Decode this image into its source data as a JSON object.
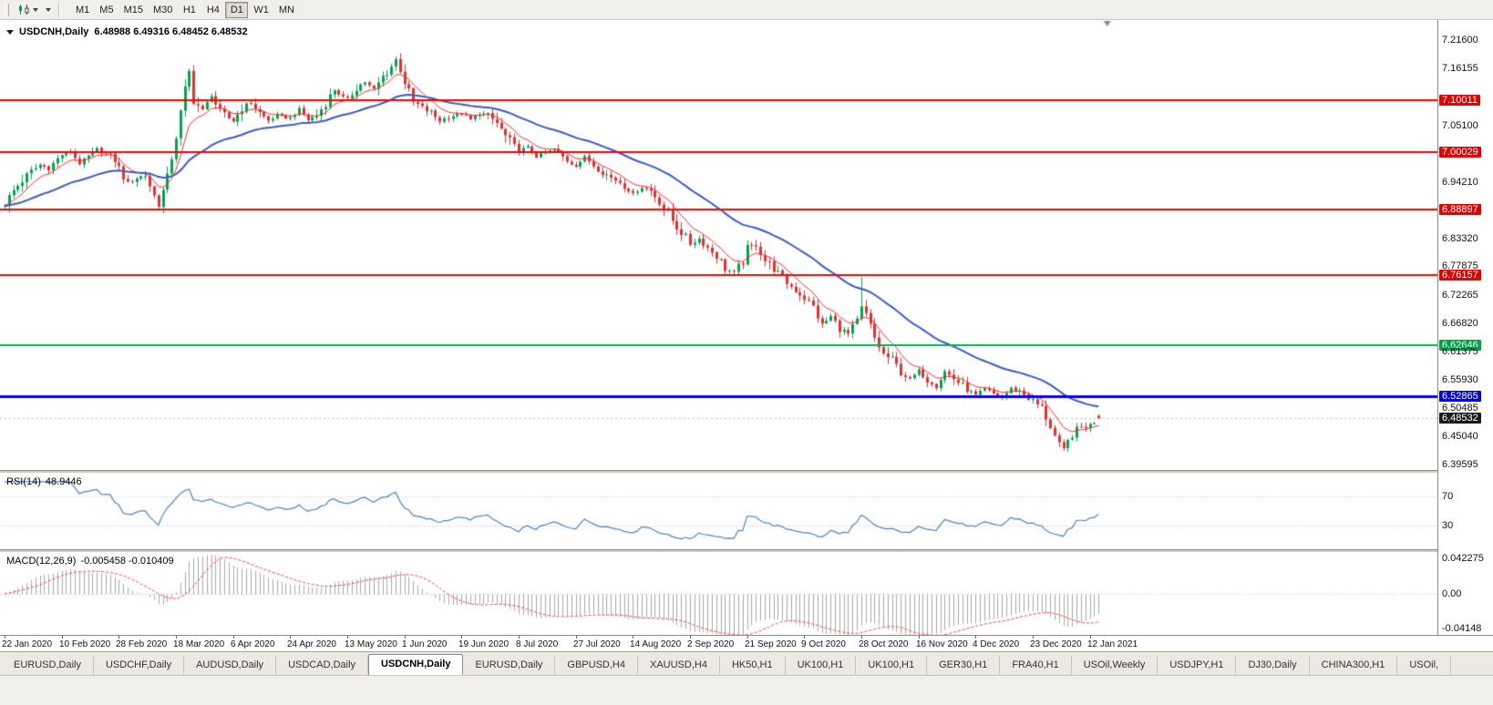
{
  "toolbar": {
    "timeframes": [
      {
        "label": "M1",
        "active": false
      },
      {
        "label": "M5",
        "active": false
      },
      {
        "label": "M15",
        "active": false
      },
      {
        "label": "M30",
        "active": false
      },
      {
        "label": "H1",
        "active": false
      },
      {
        "label": "H4",
        "active": false
      },
      {
        "label": "D1",
        "active": true
      },
      {
        "label": "W1",
        "active": false
      },
      {
        "label": "MN",
        "active": false
      }
    ]
  },
  "chart": {
    "title": "USDCNH,Daily",
    "ohlc_text": "6.48988 6.49316 6.48452 6.48532"
  },
  "rsi_panel": {
    "label": "RSI(14)",
    "value": "48.9446",
    "axis": [
      {
        "text": "70",
        "value": 70
      },
      {
        "text": "30",
        "value": 30
      }
    ]
  },
  "macd_panel": {
    "label": "MACD(12,26,9)",
    "value": "-0.005458 -0.010409",
    "axis": [
      {
        "text": "0.042275",
        "value": 0.042275
      },
      {
        "text": "0.00",
        "value": 0
      },
      {
        "text": "-0.04148",
        "value": -0.04148
      }
    ]
  },
  "price_axis": {
    "ticks": [
      {
        "label": "7.21600",
        "price": 7.216,
        "style": "plain"
      },
      {
        "label": "7.16155",
        "price": 7.16155,
        "style": "plain"
      },
      {
        "label": "7.10011",
        "price": 7.10011,
        "style": "red"
      },
      {
        "label": "7.05100",
        "price": 7.051,
        "style": "plain"
      },
      {
        "label": "7.00029",
        "price": 7.00029,
        "style": "red"
      },
      {
        "label": "6.94210",
        "price": 6.9421,
        "style": "plain"
      },
      {
        "label": "6.88897",
        "price": 6.88897,
        "style": "red"
      },
      {
        "label": "6.83320",
        "price": 6.8332,
        "style": "plain"
      },
      {
        "label": "6.77875",
        "price": 6.77875,
        "style": "plain"
      },
      {
        "label": "6.76157",
        "price": 6.76157,
        "style": "red"
      },
      {
        "label": "6.72265",
        "price": 6.72265,
        "style": "plain"
      },
      {
        "label": "6.66820",
        "price": 6.6682,
        "style": "plain"
      },
      {
        "label": "6.62646",
        "price": 6.62646,
        "style": "green"
      },
      {
        "label": "6.61375",
        "price": 6.61375,
        "style": "plain"
      },
      {
        "label": "6.55930",
        "price": 6.5593,
        "style": "plain"
      },
      {
        "label": "6.52865",
        "price": 6.52865,
        "style": "blue"
      },
      {
        "label": "6.50485",
        "price": 6.50485,
        "style": "plain"
      },
      {
        "label": "6.48532",
        "price": 6.48532,
        "style": "current"
      },
      {
        "label": "6.45040",
        "price": 6.4504,
        "style": "plain"
      },
      {
        "label": "6.39595",
        "price": 6.39595,
        "style": "plain"
      }
    ]
  },
  "time_axis": {
    "labels": [
      {
        "text": "22 Jan 2020",
        "bar": 0
      },
      {
        "text": "10 Feb 2020",
        "bar": 13
      },
      {
        "text": "28 Feb 2020",
        "bar": 26
      },
      {
        "text": "18 Mar 2020",
        "bar": 39
      },
      {
        "text": "6 Apr 2020",
        "bar": 52
      },
      {
        "text": "24 Apr 2020",
        "bar": 65
      },
      {
        "text": "13 May 2020",
        "bar": 78
      },
      {
        "text": "1 Jun 2020",
        "bar": 91
      },
      {
        "text": "19 Jun 2020",
        "bar": 104
      },
      {
        "text": "8 Jul 2020",
        "bar": 117
      },
      {
        "text": "27 Jul 2020",
        "bar": 130
      },
      {
        "text": "14 Aug 2020",
        "bar": 143
      },
      {
        "text": "2 Sep 2020",
        "bar": 156
      },
      {
        "text": "21 Sep 2020",
        "bar": 169
      },
      {
        "text": "9 Oct 2020",
        "bar": 182
      },
      {
        "text": "28 Oct 2020",
        "bar": 195
      },
      {
        "text": "16 Nov 2020",
        "bar": 208
      },
      {
        "text": "4 Dec 2020",
        "bar": 221
      },
      {
        "text": "23 Dec 2020",
        "bar": 234
      },
      {
        "text": "12 Jan 2021",
        "bar": 247
      }
    ]
  },
  "tabs": [
    {
      "label": "EURUSD,Daily",
      "active": false
    },
    {
      "label": "USDCHF,Daily",
      "active": false
    },
    {
      "label": "AUDUSD,Daily",
      "active": false
    },
    {
      "label": "USDCAD,Daily",
      "active": false
    },
    {
      "label": "USDCNH,Daily",
      "active": true
    },
    {
      "label": "EURUSD,Daily",
      "active": false
    },
    {
      "label": "GBPUSD,H4",
      "active": false
    },
    {
      "label": "XAUUSD,H4",
      "active": false
    },
    {
      "label": "HK50,H1",
      "active": false
    },
    {
      "label": "UK100,H1",
      "active": false
    },
    {
      "label": "UK100,H1",
      "active": false
    },
    {
      "label": "GER30,H1",
      "active": false
    },
    {
      "label": "FRA40,H1",
      "active": false
    },
    {
      "label": "USOil,Weekly",
      "active": false
    },
    {
      "label": "USDJPY,H1",
      "active": false
    },
    {
      "label": "DJ30,Daily",
      "active": false
    },
    {
      "label": "CHINA300,H1",
      "active": false
    },
    {
      "label": "USOil,",
      "active": false
    }
  ],
  "colors": {
    "bull": "#00a450",
    "bear": "#e42f2f",
    "ma_fast": "#ff2828",
    "ma_slow": "#3c59c8",
    "rsi": "#4d82c4",
    "macd_hist": "#a9a9a9",
    "macd_signal": "#ff3b3b"
  },
  "chart_data": {
    "type": "candlestick",
    "symbol": "USDCNH",
    "period": "Daily",
    "bars": 250,
    "axis": {
      "price_top": 7.2547,
      "price_bottom": 6.3854
    },
    "ohlc_display": {
      "open": 6.48988,
      "high": 6.49316,
      "low": 6.48452,
      "close": 6.48532
    },
    "current_price": 6.48532,
    "close_path_anchors": [
      [
        0,
        6.9
      ],
      [
        2,
        6.925
      ],
      [
        4,
        6.945
      ],
      [
        6,
        6.962
      ],
      [
        8,
        6.975
      ],
      [
        10,
        6.968
      ],
      [
        13,
        6.995
      ],
      [
        15,
        7.0
      ],
      [
        17,
        6.978
      ],
      [
        19,
        6.99
      ],
      [
        21,
        7.005
      ],
      [
        23,
        6.995
      ],
      [
        25,
        6.985
      ],
      [
        26,
        6.968
      ],
      [
        28,
        6.938
      ],
      [
        30,
        6.95
      ],
      [
        32,
        6.955
      ],
      [
        34,
        6.915
      ],
      [
        35,
        6.898
      ],
      [
        37,
        6.95
      ],
      [
        39,
        7.03
      ],
      [
        41,
        7.12
      ],
      [
        42,
        7.155
      ],
      [
        43,
        7.1
      ],
      [
        45,
        7.08
      ],
      [
        47,
        7.11
      ],
      [
        49,
        7.075
      ],
      [
        52,
        7.06
      ],
      [
        54,
        7.085
      ],
      [
        56,
        7.095
      ],
      [
        58,
        7.075
      ],
      [
        60,
        7.06
      ],
      [
        62,
        7.07
      ],
      [
        65,
        7.065
      ],
      [
        67,
        7.082
      ],
      [
        69,
        7.062
      ],
      [
        71,
        7.07
      ],
      [
        73,
        7.095
      ],
      [
        75,
        7.12
      ],
      [
        77,
        7.105
      ],
      [
        78,
        7.1
      ],
      [
        80,
        7.125
      ],
      [
        82,
        7.135
      ],
      [
        84,
        7.12
      ],
      [
        86,
        7.145
      ],
      [
        88,
        7.165
      ],
      [
        89,
        7.178
      ],
      [
        90,
        7.16
      ],
      [
        91,
        7.135
      ],
      [
        93,
        7.095
      ],
      [
        95,
        7.085
      ],
      [
        97,
        7.075
      ],
      [
        99,
        7.06
      ],
      [
        101,
        7.068
      ],
      [
        103,
        7.072
      ],
      [
        104,
        7.075
      ],
      [
        106,
        7.062
      ],
      [
        108,
        7.075
      ],
      [
        110,
        7.07
      ],
      [
        112,
        7.055
      ],
      [
        114,
        7.03
      ],
      [
        116,
        7.01
      ],
      [
        117,
        7.002
      ],
      [
        119,
        7.008
      ],
      [
        121,
        6.992
      ],
      [
        123,
        6.998
      ],
      [
        125,
        7.005
      ],
      [
        127,
        6.99
      ],
      [
        129,
        6.978
      ],
      [
        130,
        6.974
      ],
      [
        132,
        6.99
      ],
      [
        134,
        6.975
      ],
      [
        136,
        6.962
      ],
      [
        138,
        6.95
      ],
      [
        140,
        6.942
      ],
      [
        142,
        6.928
      ],
      [
        143,
        6.918
      ],
      [
        145,
        6.932
      ],
      [
        147,
        6.925
      ],
      [
        149,
        6.905
      ],
      [
        151,
        6.88
      ],
      [
        153,
        6.855
      ],
      [
        155,
        6.835
      ],
      [
        156,
        6.822
      ],
      [
        158,
        6.832
      ],
      [
        160,
        6.815
      ],
      [
        162,
        6.8
      ],
      [
        164,
        6.775
      ],
      [
        166,
        6.765
      ],
      [
        168,
        6.788
      ],
      [
        169,
        6.812
      ],
      [
        171,
        6.822
      ],
      [
        173,
        6.79
      ],
      [
        175,
        6.775
      ],
      [
        177,
        6.755
      ],
      [
        179,
        6.74
      ],
      [
        181,
        6.726
      ],
      [
        182,
        6.718
      ],
      [
        184,
        6.7
      ],
      [
        186,
        6.665
      ],
      [
        188,
        6.682
      ],
      [
        190,
        6.66
      ],
      [
        192,
        6.648
      ],
      [
        194,
        6.672
      ],
      [
        195,
        6.7
      ],
      [
        196,
        6.685
      ],
      [
        198,
        6.64
      ],
      [
        200,
        6.608
      ],
      [
        202,
        6.598
      ],
      [
        204,
        6.575
      ],
      [
        206,
        6.56
      ],
      [
        208,
        6.578
      ],
      [
        210,
        6.56
      ],
      [
        212,
        6.548
      ],
      [
        214,
        6.576
      ],
      [
        216,
        6.562
      ],
      [
        218,
        6.548
      ],
      [
        220,
        6.535
      ],
      [
        221,
        6.53
      ],
      [
        223,
        6.542
      ],
      [
        225,
        6.532
      ],
      [
        227,
        6.526
      ],
      [
        229,
        6.542
      ],
      [
        231,
        6.538
      ],
      [
        233,
        6.525
      ],
      [
        234,
        6.518
      ],
      [
        236,
        6.505
      ],
      [
        238,
        6.47
      ],
      [
        240,
        6.432
      ],
      [
        241,
        6.425
      ],
      [
        243,
        6.455
      ],
      [
        245,
        6.468
      ],
      [
        247,
        6.472
      ],
      [
        249,
        6.48532
      ]
    ],
    "special_bars": [
      {
        "i": 195,
        "high": 6.758,
        "low": 6.69
      }
    ],
    "h_lines": [
      {
        "price": 7.10011,
        "color": "#ff0000",
        "width": 2
      },
      {
        "price": 7.00029,
        "color": "#ff0000",
        "width": 2
      },
      {
        "price": 6.88897,
        "color": "#ff0000",
        "width": 2
      },
      {
        "price": 6.76157,
        "color": "#ff0000",
        "width": 2
      },
      {
        "price": 6.62646,
        "color": "#00b050",
        "width": 2
      },
      {
        "price": 6.52865,
        "color": "#0000ff",
        "width": 3
      }
    ],
    "moving_averages": [
      {
        "period": 8,
        "color": "#ff2828",
        "width": 1
      },
      {
        "period": 34,
        "color": "#3c59c8",
        "width": 2
      }
    ],
    "rsi": {
      "period": 14,
      "levels": [
        70,
        30
      ],
      "current": 48.9446
    },
    "macd": {
      "fast": 12,
      "slow": 26,
      "signal": 9,
      "current": [
        -0.005458,
        -0.010409
      ],
      "scale_max": 0.042275,
      "scale_min": -0.04148
    }
  }
}
